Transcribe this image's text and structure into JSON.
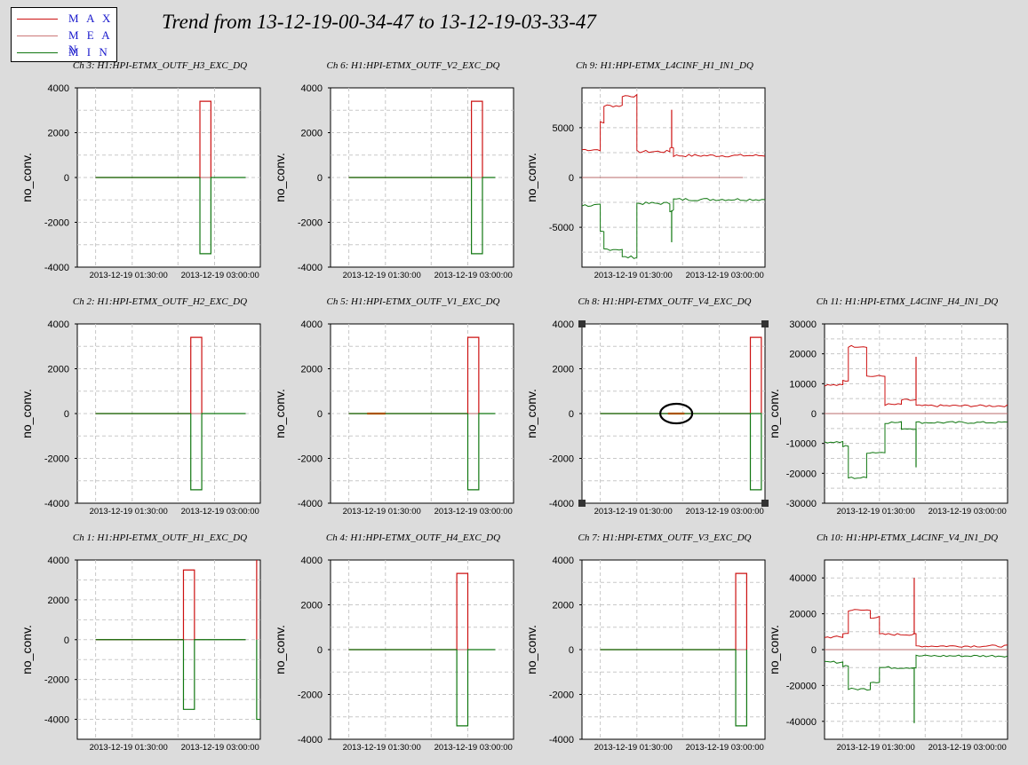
{
  "page": {
    "title": "Trend from 13-12-19-00-34-47 to 13-12-19-03-33-47"
  },
  "legend": [
    {
      "label": "M A X",
      "color": "#cc1111"
    },
    {
      "label": "M E A N",
      "color": "#cc7777"
    },
    {
      "label": "M I N",
      "color": "#117711"
    }
  ],
  "colors": {
    "max": "#cc1111",
    "mean": "#b86b6b",
    "min": "#117711",
    "grid": "#c8c8c8"
  },
  "chart_data": [
    {
      "type": "line",
      "title": "Ch 3: H1:HPI-ETMX_OUTF_H3_EXC_DQ",
      "ylabel": "no_conv.",
      "ylim": [
        -4000,
        4000
      ],
      "yticks": [
        4000,
        2000,
        0,
        -2000,
        -4000
      ],
      "xticks": [
        "2013-12-19 01:30:00",
        "2013-12-19 03:00:00"
      ],
      "pattern": "pulse",
      "data_start": 0.1,
      "data_end": 0.92,
      "pulse_center": 0.7,
      "pulse_amp": 3400,
      "spike": null
    },
    {
      "type": "line",
      "title": "Ch 6: H1:HPI-ETMX_OUTF_V2_EXC_DQ",
      "ylabel": "no_conv.",
      "ylim": [
        -4000,
        4000
      ],
      "yticks": [
        4000,
        2000,
        0,
        -2000,
        -4000
      ],
      "xticks": [
        "2013-12-19 01:30:00",
        "2013-12-19 03:00:00"
      ],
      "pattern": "pulse",
      "data_start": 0.1,
      "data_end": 0.9,
      "pulse_center": 0.8,
      "pulse_amp": 3400,
      "spike": null
    },
    {
      "type": "line",
      "title": "Ch 9: H1:HPI-ETMX_L4CINF_H1_IN1_DQ",
      "ylabel": "no_conv.",
      "ylim": [
        -9000,
        9000
      ],
      "yticks": [
        5000,
        0,
        -5000
      ],
      "xticks": [
        "2013-12-19 01:30:00",
        "2013-12-19 03:00:00"
      ],
      "pattern": "steps",
      "data_start": 0.0,
      "data_end": 1.0,
      "mean_end": 0.88,
      "max_segments": [
        [
          0.0,
          0.1,
          2800
        ],
        [
          0.1,
          0.12,
          5500
        ],
        [
          0.12,
          0.22,
          7200
        ],
        [
          0.22,
          0.3,
          8200
        ],
        [
          0.3,
          0.48,
          2600
        ],
        [
          0.48,
          0.5,
          3000
        ],
        [
          0.5,
          1.0,
          2200
        ]
      ],
      "min_segments": [
        [
          0.0,
          0.1,
          -2800
        ],
        [
          0.1,
          0.12,
          -5500
        ],
        [
          0.12,
          0.22,
          -7200
        ],
        [
          0.22,
          0.3,
          -8000
        ],
        [
          0.3,
          0.48,
          -2600
        ],
        [
          0.48,
          0.5,
          -3300
        ],
        [
          0.5,
          1.0,
          -2200
        ]
      ],
      "spike": {
        "x": 0.49,
        "max": 6800,
        "min": -6500
      },
      "noise": 0.05
    },
    {
      "type": "line",
      "title": "Ch 2: H1:HPI-ETMX_OUTF_H2_EXC_DQ",
      "ylabel": "no_conv.",
      "ylim": [
        -4000,
        4000
      ],
      "yticks": [
        4000,
        2000,
        0,
        -2000,
        -4000
      ],
      "xticks": [
        "2013-12-19 01:30:00",
        "2013-12-19 03:00:00"
      ],
      "pattern": "pulse",
      "data_start": 0.1,
      "data_end": 0.92,
      "pulse_center": 0.65,
      "pulse_amp": 3400,
      "spike": null
    },
    {
      "type": "line",
      "title": "Ch 5: H1:HPI-ETMX_OUTF_V1_EXC_DQ",
      "ylabel": "no_conv.",
      "ylim": [
        -4000,
        4000
      ],
      "yticks": [
        4000,
        2000,
        0,
        -2000,
        -4000
      ],
      "xticks": [
        "2013-12-19 01:30:00",
        "2013-12-19 03:00:00"
      ],
      "pattern": "pulse",
      "data_start": 0.1,
      "data_end": 0.9,
      "pulse_center": 0.78,
      "pulse_amp": 3400,
      "bump": [
        0.2,
        0.3
      ],
      "spike": null
    },
    {
      "type": "line",
      "title": "Ch 8: H1:HPI-ETMX_OUTF_V4_EXC_DQ",
      "ylabel": "no_conv.",
      "ylim": [
        -4000,
        4000
      ],
      "yticks": [
        4000,
        2000,
        0,
        -2000,
        -4000
      ],
      "xticks": [
        "2013-12-19 01:30:00",
        "2013-12-19 03:00:00"
      ],
      "pattern": "pulse",
      "data_start": 0.1,
      "data_end": 0.9,
      "pulse_center": 0.95,
      "pulse_amp": 3400,
      "bump": [
        0.47,
        0.56
      ],
      "ellipse": [
        0.515,
        0
      ],
      "selected": true,
      "spike": null
    },
    {
      "type": "line",
      "title": "Ch 11: H1:HPI-ETMX_L4CINF_H4_IN1_DQ",
      "ylabel": "no_conv.",
      "ylim": [
        -30000,
        30000
      ],
      "yticks": [
        30000,
        20000,
        10000,
        0,
        -10000,
        -20000,
        -30000
      ],
      "xticks": [
        "2013-12-19 01:30:00",
        "2013-12-19 03:00:00"
      ],
      "pattern": "steps",
      "data_start": 0.0,
      "data_end": 1.0,
      "mean_end": 1.0,
      "max_segments": [
        [
          0.0,
          0.1,
          9500
        ],
        [
          0.1,
          0.13,
          11000
        ],
        [
          0.13,
          0.23,
          22500
        ],
        [
          0.23,
          0.33,
          12500
        ],
        [
          0.33,
          0.42,
          3000
        ],
        [
          0.42,
          0.5,
          4500
        ],
        [
          0.5,
          1.0,
          2600
        ]
      ],
      "min_segments": [
        [
          0.0,
          0.1,
          -9500
        ],
        [
          0.1,
          0.13,
          -11000
        ],
        [
          0.13,
          0.23,
          -21500
        ],
        [
          0.23,
          0.33,
          -13000
        ],
        [
          0.33,
          0.42,
          -3000
        ],
        [
          0.42,
          0.5,
          -5000
        ],
        [
          0.5,
          1.0,
          -3000
        ]
      ],
      "spike": {
        "x": 0.5,
        "max": 19000,
        "min": -18000
      },
      "noise": 0.04
    },
    {
      "type": "line",
      "title": "Ch 1: H1:HPI-ETMX_OUTF_H1_EXC_DQ",
      "ylabel": "no_conv.",
      "ylim": [
        -5000,
        4000
      ],
      "yticks": [
        4000,
        2000,
        0,
        -2000,
        -4000
      ],
      "xticks": [
        "2013-12-19 01:30:00",
        "2013-12-19 03:00:00"
      ],
      "pattern": "pulse",
      "data_start": 0.1,
      "data_end": 0.92,
      "pulse_center": 0.61,
      "pulse_amp": 3500,
      "pulse2": 0.98,
      "spike": null
    },
    {
      "type": "line",
      "title": "Ch 4: H1:HPI-ETMX_OUTF_H4_EXC_DQ",
      "ylabel": "no_conv.",
      "ylim": [
        -4000,
        4000
      ],
      "yticks": [
        4000,
        2000,
        0,
        -2000,
        -4000
      ],
      "xticks": [
        "2013-12-19 01:30:00",
        "2013-12-19 03:00:00"
      ],
      "pattern": "pulse",
      "data_start": 0.1,
      "data_end": 0.9,
      "pulse_center": 0.72,
      "pulse_amp": 3400,
      "spike": null
    },
    {
      "type": "line",
      "title": "Ch 7: H1:HPI-ETMX_OUTF_V3_EXC_DQ",
      "ylabel": "no_conv.",
      "ylim": [
        -4000,
        4000
      ],
      "yticks": [
        4000,
        2000,
        0,
        -2000,
        -4000
      ],
      "xticks": [
        "2013-12-19 01:30:00",
        "2013-12-19 03:00:00"
      ],
      "pattern": "pulse",
      "data_start": 0.1,
      "data_end": 0.9,
      "pulse_center": 0.87,
      "pulse_amp": 3400,
      "spike": null
    },
    {
      "type": "line",
      "title": "Ch 10: H1:HPI-ETMX_L4CINF_V4_IN1_DQ",
      "ylabel": "no_conv.",
      "ylim": [
        -50000,
        50000
      ],
      "yticks": [
        40000,
        20000,
        0,
        -20000,
        -40000
      ],
      "xticks": [
        "2013-12-19 01:30:00",
        "2013-12-19 03:00:00"
      ],
      "pattern": "steps",
      "data_start": 0.0,
      "data_end": 1.0,
      "mean_end": 1.0,
      "max_segments": [
        [
          0.0,
          0.1,
          7000
        ],
        [
          0.1,
          0.13,
          9000
        ],
        [
          0.13,
          0.25,
          22000
        ],
        [
          0.25,
          0.3,
          18000
        ],
        [
          0.3,
          0.48,
          8500
        ],
        [
          0.48,
          0.5,
          8500
        ],
        [
          0.5,
          1.0,
          2000
        ]
      ],
      "min_segments": [
        [
          0.0,
          0.1,
          -7000
        ],
        [
          0.1,
          0.13,
          -9000
        ],
        [
          0.13,
          0.25,
          -22000
        ],
        [
          0.25,
          0.3,
          -18000
        ],
        [
          0.3,
          0.48,
          -10000
        ],
        [
          0.48,
          0.5,
          -10000
        ],
        [
          0.5,
          1.0,
          -3500
        ]
      ],
      "spike": {
        "x": 0.49,
        "max": 40000,
        "min": -41000
      },
      "noise": 0.04
    }
  ]
}
